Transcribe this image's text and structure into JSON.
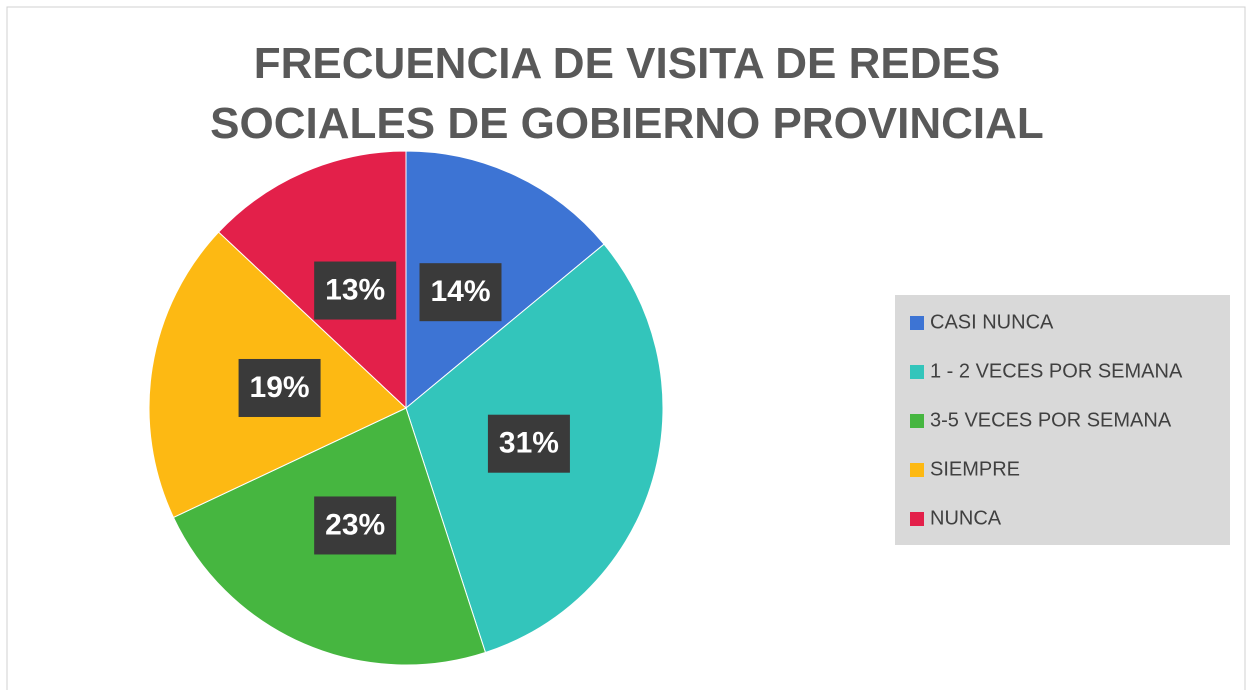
{
  "chart_data": {
    "type": "pie",
    "title": "FRECUENCIA DE VISITA DE REDES SOCIALES DE GOBIERNO PROVINCIAL",
    "categories": [
      "CASI NUNCA",
      "1 - 2 VECES POR SEMANA",
      "3-5  VECES POR SEMANA",
      "SIEMPRE",
      "NUNCA"
    ],
    "values": [
      14,
      31,
      23,
      19,
      13
    ],
    "value_labels": [
      "14%",
      "31%",
      "23%",
      "19%",
      "13%"
    ],
    "colors": [
      "#3d74d4",
      "#33c5bb",
      "#46b640",
      "#fdb913",
      "#e3204a"
    ],
    "legend": "right"
  }
}
